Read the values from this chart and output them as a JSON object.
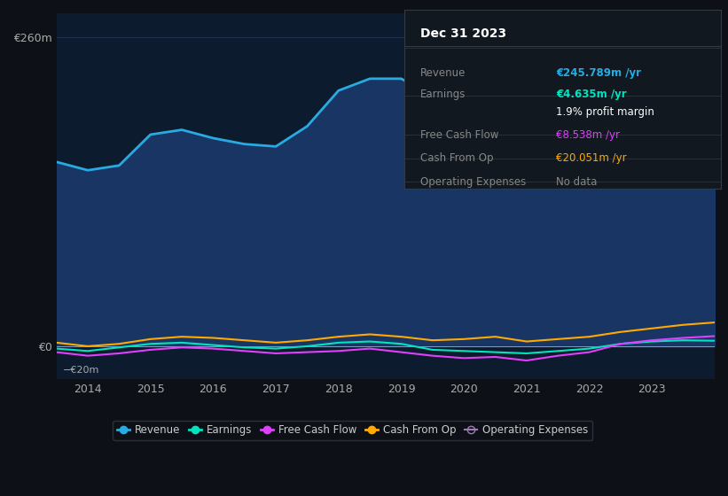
{
  "bg_color": "#0d1117",
  "plot_bg_color": "#0d1b2e",
  "grid_color": "#1e3050",
  "years": [
    2013.5,
    2014,
    2014.5,
    2015,
    2015.5,
    2016,
    2016.5,
    2017,
    2017.5,
    2018,
    2018.5,
    2019,
    2019.5,
    2020,
    2020.5,
    2021,
    2021.5,
    2022,
    2022.5,
    2023,
    2023.5,
    2024
  ],
  "revenue": [
    155,
    148,
    152,
    178,
    182,
    175,
    170,
    168,
    185,
    215,
    225,
    225,
    210,
    195,
    185,
    155,
    170,
    215,
    250,
    250,
    240,
    246
  ],
  "earnings": [
    -2,
    -4,
    -1,
    2,
    3,
    1,
    -1,
    -2,
    0,
    3,
    4,
    2,
    -3,
    -4,
    -5,
    -6,
    -4,
    -2,
    2,
    4,
    5,
    4.6
  ],
  "free_cash_flow": [
    -5,
    -8,
    -6,
    -3,
    -1,
    -2,
    -4,
    -6,
    -5,
    -4,
    -2,
    -5,
    -8,
    -10,
    -9,
    -12,
    -8,
    -5,
    2,
    5,
    7,
    8.5
  ],
  "cash_from_op": [
    3,
    0,
    2,
    6,
    8,
    7,
    5,
    3,
    5,
    8,
    10,
    8,
    5,
    6,
    8,
    4,
    6,
    8,
    12,
    15,
    18,
    20
  ],
  "revenue_color": "#29abe2",
  "earnings_color": "#00e5c0",
  "fcf_color": "#e040fb",
  "cfo_color": "#ffaa00",
  "op_exp_color": "#9e7bb5",
  "fill_color": "#1a3a6e",
  "ylim_top": 280,
  "ylim_bottom": -28,
  "y_ticks": [
    0,
    260
  ],
  "y_tick_labels": [
    "€0",
    "€260m"
  ],
  "x_ticks": [
    2014,
    2015,
    2016,
    2017,
    2018,
    2019,
    2020,
    2021,
    2022,
    2023
  ],
  "info_box": {
    "title": "Dec 31 2023",
    "rows": [
      {
        "label": "Revenue",
        "value": "€245.789m /yr",
        "value_color": "#29abe2"
      },
      {
        "label": "Earnings",
        "value": "€4.635m /yr",
        "value_color": "#00e5c0"
      },
      {
        "label": "",
        "value": "1.9% profit margin",
        "value_color": "#ffffff"
      },
      {
        "label": "Free Cash Flow",
        "value": "€8.538m /yr",
        "value_color": "#e040fb"
      },
      {
        "label": "Cash From Op",
        "value": "€20.051m /yr",
        "value_color": "#ffaa00"
      },
      {
        "label": "Operating Expenses",
        "value": "No data",
        "value_color": "#888888"
      }
    ]
  }
}
